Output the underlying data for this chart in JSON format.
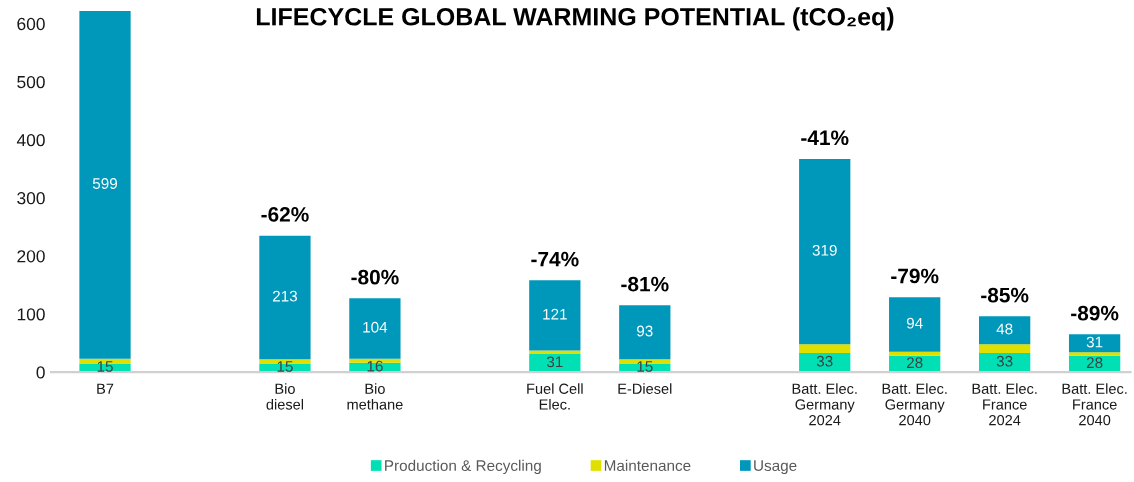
{
  "chart_data": {
    "type": "bar",
    "title": "LIFECYCLE GLOBAL WARMING POTENTIAL (tCO₂eq)",
    "stacked": true,
    "categories": [
      "B7",
      null,
      "Bio\ndiesel",
      "Bio\nmethane",
      null,
      "Fuel Cell\nElec.",
      "E-Diesel",
      null,
      "Batt. Elec.\nGermany\n2024",
      "Batt. Elec.\nGermany\n2040",
      "Batt. Elec.\nFrance\n2024",
      "Batt. Elec.\nFrance\n2040"
    ],
    "series": [
      {
        "name": "Production & Recycling",
        "color": "#00e0b4",
        "values": [
          15,
          null,
          15,
          16,
          null,
          31,
          15,
          null,
          33,
          28,
          33,
          28
        ],
        "value_labels": [
          "15",
          null,
          "15",
          "16",
          null,
          "31",
          "15",
          null,
          "33",
          "28",
          "33",
          "28"
        ]
      },
      {
        "name": "Maintenance",
        "color": "#e0e000",
        "values": [
          8,
          null,
          7,
          7,
          null,
          6,
          7,
          null,
          15,
          7,
          15,
          6
        ]
      },
      {
        "name": "Usage",
        "color": "#0098ba",
        "values": [
          599,
          null,
          213,
          104,
          null,
          121,
          93,
          null,
          319,
          94,
          48,
          31
        ],
        "value_labels": [
          "599",
          null,
          "213",
          "104",
          null,
          "121",
          "93",
          null,
          "319",
          "94",
          "48",
          "31"
        ]
      }
    ],
    "ylim": [
      0,
      625
    ],
    "yticks": [
      0,
      100,
      200,
      300,
      400,
      500,
      600
    ],
    "grid": false,
    "legend": "bottom",
    "annotations": [
      {
        "text": "-62%",
        "x": "Bio\ndiesel",
        "y": 235
      },
      {
        "text": "-80%",
        "x": "Bio\nmethane",
        "y": 127
      },
      {
        "text": "-74%",
        "x": "Fuel Cell\nElec.",
        "y": 158
      },
      {
        "text": "-81%",
        "x": "E-Diesel",
        "y": 115
      },
      {
        "text": "-41%",
        "x": "Batt. Elec.\nGermany\n2024",
        "y": 367
      },
      {
        "text": "-79%",
        "x": "Batt. Elec.\nGermany\n2040",
        "y": 129
      },
      {
        "text": "-85%",
        "x": "Batt. Elec.\nFrance\n2024",
        "y": 96
      },
      {
        "text": "-89%",
        "x": "Batt. Elec.\nFrance\n2040",
        "y": 65
      }
    ]
  }
}
